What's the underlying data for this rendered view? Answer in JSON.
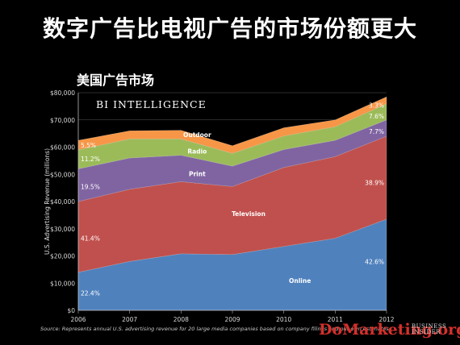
{
  "slide": {
    "title": "数字广告比电视广告的市场份额更大",
    "chart_title": "美国广告市场",
    "source_note": "Source: Represents annual U.S. advertising revenue for 20 large media companies based on company filings and our own estimates",
    "watermark": "DoMarketing.org",
    "logo": {
      "line1": "BUSINESS",
      "line2": "INSIDER"
    }
  },
  "colors": {
    "background": "#000000",
    "online": "#4f81bd",
    "television": "#c0504d",
    "print": "#8064a2",
    "radio": "#9bbb59",
    "outdoor": "#f79646",
    "watermark": "#d5302c"
  },
  "chart_data": {
    "type": "area",
    "stacked": true,
    "brand_label": "BI INTELLIGENCE",
    "ylabel": "U.S. Advertising Revenue (millions)",
    "xlabel": "",
    "x": [
      "2006",
      "2007",
      "2008",
      "2009",
      "2010",
      "2011",
      "2012"
    ],
    "ylim": [
      0,
      80000
    ],
    "y_ticks": [
      "$0",
      "$10,000",
      "$20,000",
      "$30,000",
      "$40,000",
      "$50,000",
      "$60,000",
      "$70,000",
      "$80,000"
    ],
    "grid": true,
    "series": [
      {
        "name": "Online",
        "values": [
          14000,
          18000,
          20800,
          20500,
          23500,
          26500,
          33500
        ]
      },
      {
        "name": "Television",
        "values": [
          26000,
          26500,
          26500,
          25000,
          29000,
          30000,
          30500
        ]
      },
      {
        "name": "Print",
        "values": [
          12000,
          11500,
          9700,
          7500,
          6600,
          6000,
          6000
        ]
      },
      {
        "name": "Radio",
        "values": [
          7000,
          7000,
          6000,
          4700,
          5000,
          5000,
          5900
        ]
      },
      {
        "name": "Outdoor",
        "values": [
          3500,
          3000,
          3200,
          2800,
          3000,
          2500,
          2600
        ]
      }
    ],
    "annotations": [
      {
        "text": "22.4%",
        "x": "2006",
        "y": 6300
      },
      {
        "text": "41.4%",
        "x": "2006",
        "y": 26500
      },
      {
        "text": "19.5%",
        "x": "2006",
        "y": 45500
      },
      {
        "text": "11.2%",
        "x": "2006",
        "y": 55700
      },
      {
        "text": "5.5%",
        "x": "2006",
        "y": 60800
      },
      {
        "text": "42.6%",
        "x": "2012",
        "y": 18000
      },
      {
        "text": "38.9%",
        "x": "2012",
        "y": 47000
      },
      {
        "text": "7.7%",
        "x": "2012",
        "y": 65800
      },
      {
        "text": "7.6%",
        "x": "2012",
        "y": 71400
      },
      {
        "text": "3.3%",
        "x": "2012",
        "y": 75400
      }
    ],
    "series_labels": [
      {
        "text": "Online",
        "x": "2010",
        "y": 11000
      },
      {
        "text": "Television",
        "x": "2009",
        "y": 35500
      },
      {
        "text": "Print",
        "x": "2008",
        "y": 50200
      },
      {
        "text": "Radio",
        "x": "2008",
        "y": 58500
      },
      {
        "text": "Outdoor",
        "x": "2008",
        "y": 64600
      }
    ]
  }
}
